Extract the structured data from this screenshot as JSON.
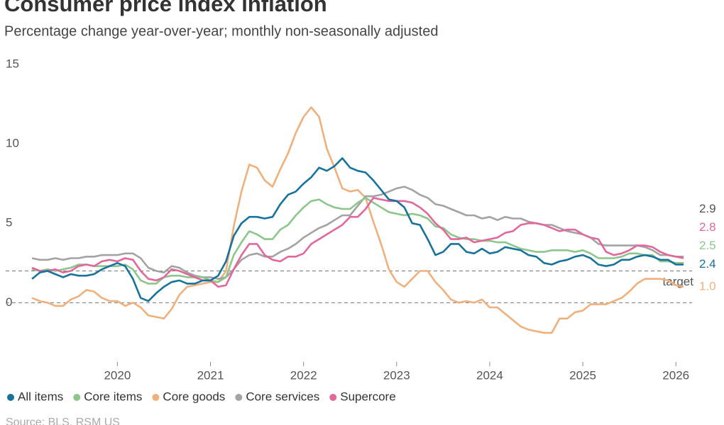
{
  "chart_data": {
    "type": "line",
    "title": "Consumer price index inflation",
    "subtitle": "Percentage change year-over-year; monthly non-seasonally adjusted",
    "source": "Source: BLS, RSM US",
    "x": [
      2019.083,
      2019.167,
      2019.25,
      2019.333,
      2019.417,
      2019.5,
      2019.583,
      2019.667,
      2019.75,
      2019.833,
      2019.917,
      2020,
      2020.083,
      2020.167,
      2020.25,
      2020.333,
      2020.417,
      2020.5,
      2020.583,
      2020.667,
      2020.75,
      2020.833,
      2020.917,
      2021,
      2021.083,
      2021.167,
      2021.25,
      2021.333,
      2021.417,
      2021.5,
      2021.583,
      2021.667,
      2021.75,
      2021.833,
      2021.917,
      2022,
      2022.083,
      2022.167,
      2022.25,
      2022.333,
      2022.417,
      2022.5,
      2022.583,
      2022.667,
      2022.75,
      2022.833,
      2022.917,
      2023,
      2023.083,
      2023.167,
      2023.25,
      2023.333,
      2023.417,
      2023.5,
      2023.583,
      2023.667,
      2023.75,
      2023.833,
      2023.917,
      2024,
      2024.083,
      2024.167,
      2024.25,
      2024.333,
      2024.417,
      2024.5,
      2024.583,
      2024.667,
      2024.75,
      2024.833,
      2024.917,
      2025,
      2025.083,
      2025.167,
      2025.25,
      2025.333,
      2025.417,
      2025.5,
      2025.583,
      2025.667,
      2025.75,
      2025.833,
      2025.917,
      2026,
      2026.083
    ],
    "series": [
      {
        "name": "Core goods",
        "color": "#f0b07c",
        "end_label": "1.0",
        "values": [
          0.3,
          0.1,
          0.0,
          -0.2,
          -0.2,
          0.2,
          0.4,
          0.8,
          0.7,
          0.3,
          0.1,
          0.1,
          -0.2,
          0.0,
          -0.3,
          -0.8,
          -0.9,
          -1.0,
          -0.4,
          0.5,
          1.0,
          1.1,
          1.2,
          1.3,
          1.3,
          2.0,
          4.8,
          7.0,
          8.7,
          8.5,
          7.7,
          7.3,
          8.4,
          9.4,
          10.7,
          11.7,
          12.3,
          11.7,
          9.7,
          8.5,
          7.2,
          7.0,
          7.1,
          6.6,
          5.1,
          3.7,
          2.1,
          1.3,
          1.0,
          1.5,
          2.0,
          2.0,
          1.3,
          0.8,
          0.2,
          0.0,
          0.1,
          0.0,
          0.2,
          -0.3,
          -0.3,
          -0.7,
          -1.1,
          -1.5,
          -1.7,
          -1.8,
          -1.9,
          -1.9,
          -1.0,
          -1.0,
          -0.6,
          -0.5,
          -0.1,
          -0.1,
          -0.1,
          0.1,
          0.3,
          0.7,
          1.2,
          1.5,
          1.5,
          1.5,
          1.4,
          1.1,
          1.0
        ]
      },
      {
        "name": "Core services",
        "color": "#a3a3a3",
        "end_label": "2.9",
        "values": [
          2.8,
          2.7,
          2.7,
          2.8,
          2.7,
          2.8,
          2.8,
          2.9,
          2.9,
          3.0,
          3.0,
          3.0,
          3.1,
          3.1,
          2.8,
          2.2,
          2.0,
          1.9,
          2.3,
          2.2,
          1.9,
          1.7,
          1.6,
          1.6,
          1.5,
          1.6,
          2.1,
          2.7,
          3.0,
          3.1,
          2.9,
          2.9,
          3.2,
          3.4,
          3.7,
          4.1,
          4.4,
          4.7,
          4.9,
          5.2,
          5.5,
          5.5,
          6.1,
          6.7,
          6.7,
          6.8,
          7.0,
          7.2,
          7.3,
          7.1,
          6.8,
          6.6,
          6.2,
          6.1,
          5.9,
          5.7,
          5.5,
          5.5,
          5.3,
          5.4,
          5.2,
          5.4,
          5.3,
          5.3,
          5.1,
          5.0,
          4.9,
          4.9,
          4.7,
          4.5,
          4.4,
          4.3,
          4.1,
          3.7,
          3.6,
          3.6,
          3.6,
          3.6,
          3.6,
          3.5,
          3.3,
          3.0,
          3.0,
          2.9,
          2.9
        ]
      },
      {
        "name": "Core items",
        "color": "#8dc68c",
        "end_label": "2.5",
        "values": [
          2.1,
          2.0,
          2.1,
          2.0,
          2.1,
          2.2,
          2.4,
          2.4,
          2.3,
          2.3,
          2.3,
          2.3,
          2.4,
          2.1,
          1.4,
          1.2,
          1.2,
          1.6,
          1.7,
          1.7,
          1.6,
          1.6,
          1.6,
          1.4,
          1.3,
          1.6,
          3.0,
          3.8,
          4.5,
          4.3,
          4.0,
          4.0,
          4.6,
          4.9,
          5.5,
          6.0,
          6.4,
          6.5,
          6.2,
          6.0,
          5.9,
          5.9,
          6.3,
          6.6,
          6.3,
          6.0,
          5.7,
          5.6,
          5.5,
          5.6,
          5.5,
          5.3,
          4.8,
          4.7,
          4.3,
          4.1,
          4.0,
          4.0,
          3.9,
          3.9,
          3.8,
          3.8,
          3.6,
          3.4,
          3.3,
          3.2,
          3.2,
          3.3,
          3.3,
          3.3,
          3.2,
          3.3,
          3.1,
          2.8,
          2.8,
          2.8,
          2.9,
          3.1,
          3.1,
          3.0,
          3.0,
          2.6,
          2.6,
          2.5,
          2.5
        ]
      },
      {
        "name": "Supercore",
        "color": "#e2679b",
        "end_label": "2.8",
        "values": [
          2.2,
          2.0,
          2.0,
          2.1,
          1.9,
          2.0,
          2.3,
          2.4,
          2.3,
          2.6,
          2.7,
          2.6,
          2.8,
          2.7,
          2.0,
          1.5,
          1.4,
          1.6,
          2.1,
          2.0,
          1.8,
          1.6,
          1.4,
          1.4,
          1.0,
          1.1,
          2.1,
          3.0,
          3.7,
          3.7,
          3.0,
          2.7,
          2.6,
          2.9,
          2.9,
          3.1,
          3.7,
          4.0,
          4.3,
          4.6,
          4.9,
          5.4,
          5.4,
          5.9,
          6.6,
          6.5,
          6.4,
          6.4,
          6.4,
          6.3,
          6.0,
          5.6,
          5.0,
          4.6,
          4.0,
          4.0,
          4.1,
          3.8,
          3.9,
          4.0,
          4.1,
          4.4,
          4.5,
          4.9,
          5.0,
          5.0,
          4.9,
          4.7,
          4.5,
          4.6,
          4.6,
          4.3,
          4.1,
          4.0,
          3.2,
          3.0,
          3.1,
          3.3,
          3.6,
          3.6,
          3.5,
          3.2,
          3.0,
          2.9,
          2.8
        ]
      },
      {
        "name": "All items",
        "color": "#17729c",
        "end_label": "2.4",
        "values": [
          1.5,
          1.9,
          2.0,
          1.8,
          1.6,
          1.8,
          1.7,
          1.7,
          1.8,
          2.1,
          2.3,
          2.5,
          2.3,
          1.5,
          0.3,
          0.1,
          0.6,
          1.0,
          1.3,
          1.4,
          1.2,
          1.2,
          1.4,
          1.4,
          1.7,
          2.6,
          4.2,
          5.0,
          5.4,
          5.4,
          5.3,
          5.4,
          6.2,
          6.8,
          7.0,
          7.5,
          7.9,
          8.5,
          8.3,
          8.6,
          9.1,
          8.5,
          8.3,
          8.2,
          7.7,
          7.1,
          6.5,
          6.4,
          6.0,
          5.0,
          4.9,
          4.0,
          3.0,
          3.2,
          3.7,
          3.7,
          3.2,
          3.1,
          3.4,
          3.1,
          3.2,
          3.5,
          3.4,
          3.3,
          3.0,
          2.9,
          2.5,
          2.4,
          2.6,
          2.7,
          2.9,
          3.0,
          2.8,
          2.4,
          2.3,
          2.4,
          2.7,
          2.7,
          2.9,
          3.0,
          2.9,
          2.7,
          2.7,
          2.4,
          2.4
        ]
      }
    ],
    "legend_order": [
      "All items",
      "Core items",
      "Core goods",
      "Core services",
      "Supercore"
    ],
    "reference_lines": [
      {
        "value": 2,
        "label": "target"
      },
      {
        "value": 0
      }
    ],
    "xlim": [
      2018.8,
      2026.25
    ],
    "xticks": [
      2020,
      2021,
      2022,
      2023,
      2024,
      2025,
      2026
    ],
    "ylim": [
      -4,
      15
    ],
    "yticks": [
      0,
      5,
      10,
      15
    ]
  }
}
